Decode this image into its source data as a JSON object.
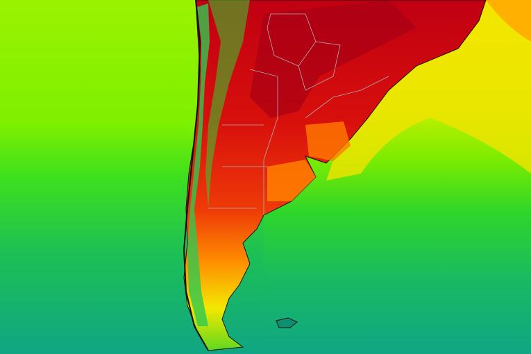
{
  "map": {
    "region": "southern-south-america",
    "layer": "temperature-heatmap",
    "colors": {
      "ocean_cold": "#12a884",
      "ocean_cool": "#1fbf5a",
      "ocean_mild": "#3ee01e",
      "ocean_warm": "#8ef000",
      "yellow": "#f2f000",
      "orange": "#ff8a00",
      "red": "#e81a0a",
      "dark_red": "#b80010",
      "borders": "#b0b0b0",
      "coast": "#101010"
    }
  }
}
